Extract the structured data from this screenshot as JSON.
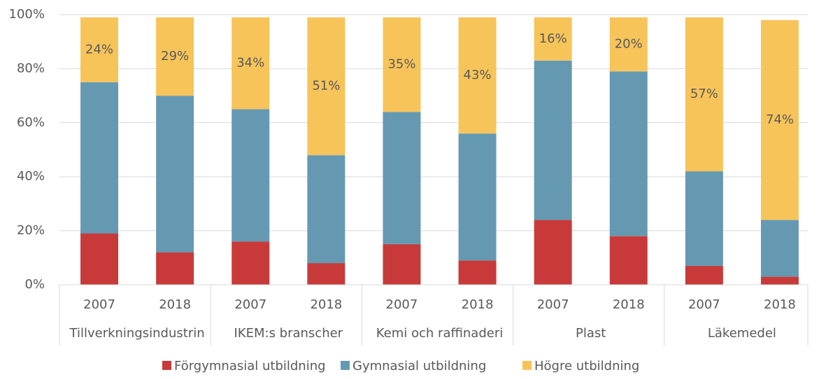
{
  "chart_data": {
    "type": "stacked_bar",
    "categories": [
      "2007",
      "2018",
      "2007",
      "2018",
      "2007",
      "2018",
      "2007",
      "2018",
      "2007",
      "2018"
    ],
    "groups": [
      "Tillverkningsindustrin",
      "IKEM:s branscher",
      "Kemi och raffinaderi",
      "Plast",
      "Läkemedel"
    ],
    "series": [
      {
        "name": "Förgymnasial utbildning",
        "color": "#c83a3a",
        "values": [
          19,
          12,
          16,
          8,
          15,
          9,
          24,
          18,
          7,
          3
        ]
      },
      {
        "name": "Gymnasial utbildning",
        "color": "#6599b2",
        "values": [
          56,
          58,
          49,
          40,
          49,
          47,
          59,
          61,
          35,
          21
        ]
      },
      {
        "name": "Högre utbildning",
        "color": "#f7c45a",
        "values": [
          24,
          29,
          34,
          51,
          35,
          43,
          16,
          20,
          57,
          74
        ],
        "value_labels": [
          "24%",
          "29%",
          "34%",
          "51%",
          "35%",
          "43%",
          "16%",
          "20%",
          "57%",
          "74%"
        ]
      }
    ],
    "ylim": [
      0,
      100
    ],
    "yticks": [
      {
        "value": 0,
        "label": "0%"
      },
      {
        "value": 20,
        "label": "20%"
      },
      {
        "value": 40,
        "label": "40%"
      },
      {
        "value": 60,
        "label": "60%"
      },
      {
        "value": 80,
        "label": "80%"
      },
      {
        "value": 100,
        "label": "100%"
      }
    ],
    "grid": true,
    "legend": "bottom"
  }
}
